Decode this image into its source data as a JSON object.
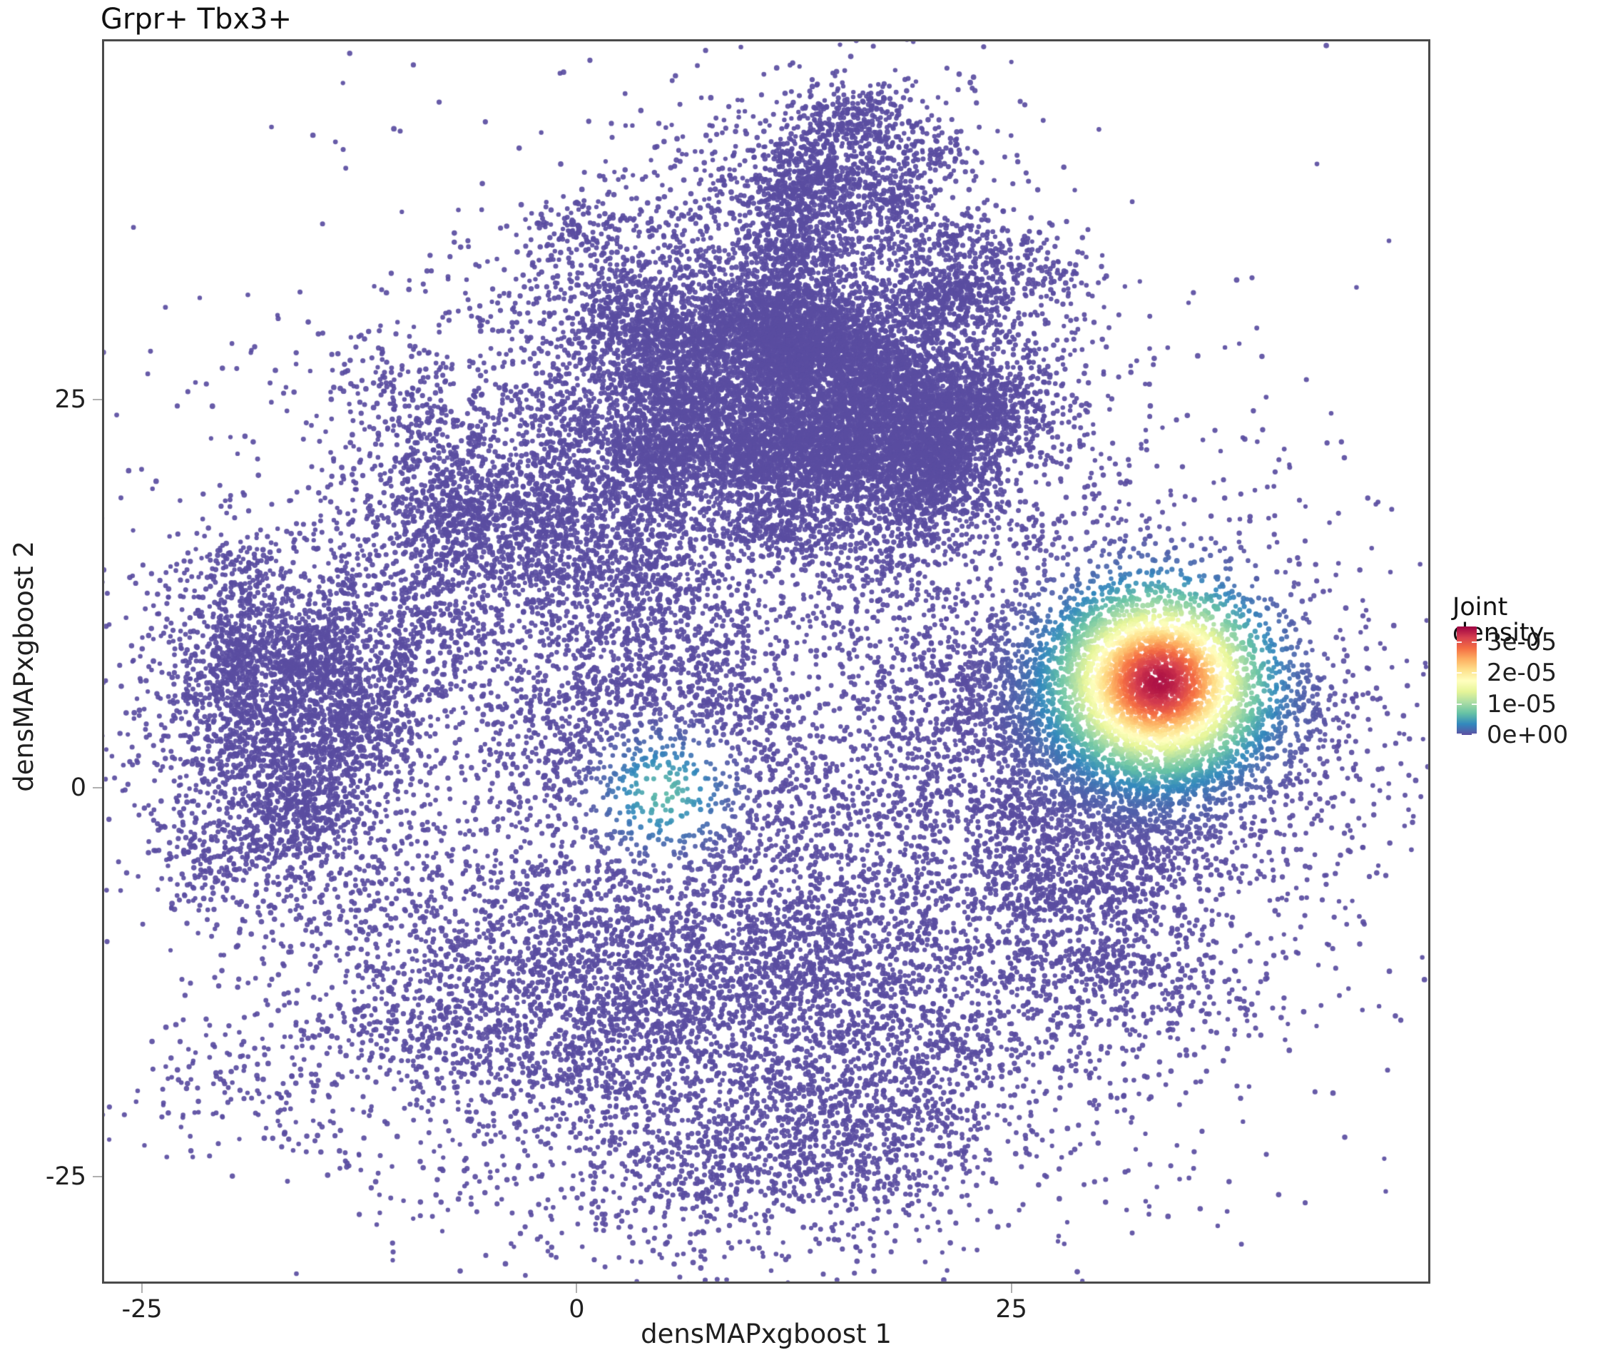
{
  "title": "Grpr+ Tbx3+",
  "axes": {
    "x": {
      "label": "densMAPxgboost 1",
      "ticks": [
        -25,
        0,
        25
      ],
      "range": [
        -27.3,
        49.1
      ]
    },
    "y": {
      "label": "densMAPxgboost 2",
      "ticks": [
        25,
        0,
        -25
      ],
      "range": [
        -31.9,
        48.2
      ]
    }
  },
  "legend": {
    "title": "Joint density",
    "tick_labels": [
      "3e-05",
      "2e-05",
      "1e-05",
      "0e+00"
    ],
    "tick_values": [
      3e-05,
      2e-05,
      1e-05,
      0
    ],
    "vmax": 3.5e-05
  },
  "chart_data": {
    "type": "scatter",
    "title": "Grpr+ Tbx3+",
    "xlabel": "densMAPxgboost 1",
    "ylabel": "densMAPxgboost 2",
    "xlim": [
      -27.3,
      49.1
    ],
    "ylim": [
      -31.9,
      48.2
    ],
    "grid": false,
    "legend_position": "right",
    "n_points_total": 40600,
    "point_radius_px": 3.5,
    "point_alpha": 0.92,
    "base_color": "#5a4da1",
    "seed": 1234,
    "clump_sigma_factor": 0.28,
    "clusters": [
      {
        "name": "left-cluster",
        "cx": -17.0,
        "cy": 4.5,
        "sx": 4.3,
        "sy": 5.8,
        "n": 3600,
        "clumps": 16,
        "clump_frac": 0.45
      },
      {
        "name": "mid-filament-region",
        "cx": -1.5,
        "cy": 17.0,
        "sx": 6.5,
        "sy": 7.0,
        "n": 4800,
        "clumps": 30,
        "clump_frac": 0.7
      },
      {
        "name": "upper-right-dense",
        "cx": 15.5,
        "cy": 24.5,
        "sx": 5.8,
        "sy": 4.6,
        "n": 10500,
        "clumps": 22,
        "clump_frac": 0.5
      },
      {
        "name": "upper-bridge",
        "cx": 7.0,
        "cy": 31.0,
        "sx": 7.0,
        "sy": 3.8,
        "n": 2300,
        "clumps": 14,
        "clump_frac": 0.6
      },
      {
        "name": "top-lobe",
        "cx": 14.0,
        "cy": 38.0,
        "sx": 5.2,
        "sy": 4.0,
        "n": 1900,
        "clumps": 12,
        "clump_frac": 0.55
      },
      {
        "name": "right-mid-cloud",
        "cx": 30.0,
        "cy": 3.0,
        "sx": 7.5,
        "sy": 6.3,
        "n": 5200,
        "clumps": 12,
        "clump_frac": 0.3
      },
      {
        "name": "hotspot-core",
        "cx": 33.5,
        "cy": 6.8,
        "sx": 3.1,
        "sy": 2.9,
        "n": 1700,
        "clumps": 0,
        "clump_frac": 0
      },
      {
        "name": "bottom-lobe",
        "cx": 9.0,
        "cy": -13.5,
        "sx": 12.0,
        "sy": 7.5,
        "n": 7800,
        "clumps": 22,
        "clump_frac": 0.35
      },
      {
        "name": "sparse-halo",
        "cx": 7.0,
        "cy": 7.0,
        "sx": 17.0,
        "sy": 15.0,
        "n": 2800,
        "clumps": 0,
        "clump_frac": 0
      }
    ],
    "density_peaks": [
      {
        "name": "main-hotspot",
        "cx": 33.5,
        "cy": 6.8,
        "sigma": 3.2,
        "peak": 3.4e-05
      },
      {
        "name": "secondary-hotspot",
        "cx": 5.0,
        "cy": -0.3,
        "sigma": 2.0,
        "peak": 6.5e-06
      }
    ],
    "colormap_name": "Spectral_r",
    "colormap_stops": [
      {
        "t": 0.0,
        "color": "#5e4fa2"
      },
      {
        "t": 0.1,
        "color": "#3288bd"
      },
      {
        "t": 0.2,
        "color": "#66c2a5"
      },
      {
        "t": 0.3,
        "color": "#abdda4"
      },
      {
        "t": 0.4,
        "color": "#e6f598"
      },
      {
        "t": 0.5,
        "color": "#ffffbf"
      },
      {
        "t": 0.6,
        "color": "#fee08b"
      },
      {
        "t": 0.7,
        "color": "#fdae61"
      },
      {
        "t": 0.8,
        "color": "#f46d43"
      },
      {
        "t": 0.9,
        "color": "#d53e4f"
      },
      {
        "t": 1.0,
        "color": "#9e0142"
      }
    ]
  }
}
